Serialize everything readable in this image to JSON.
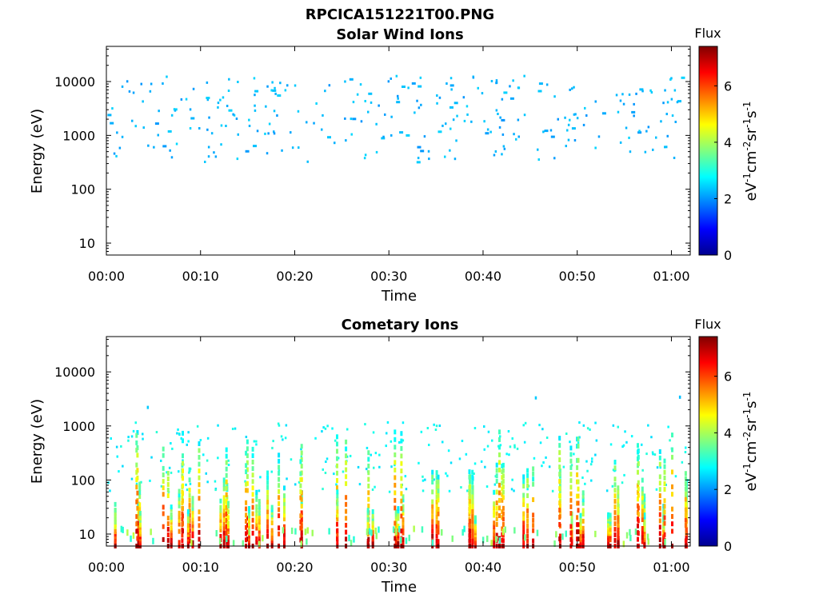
{
  "figure_title": "RPCICA151221T00.PNG",
  "colorbar": {
    "title": "Flux",
    "label": "eV-1cm-2sr-1s-1",
    "range": [
      0,
      7.4
    ],
    "ticks": [
      "0",
      "2",
      "4",
      "6"
    ],
    "colormap": "jet"
  },
  "chart_data": [
    {
      "type": "heatmap",
      "title": "Solar Wind Ions",
      "xlabel": "Time",
      "ylabel": "Energy (eV)",
      "xlim": [
        "00:00",
        "01:02"
      ],
      "ylim": [
        6,
        45000
      ],
      "yscale": "log",
      "x_ticks": [
        "00:00",
        "00:10",
        "00:20",
        "00:30",
        "00:40",
        "00:50",
        "01:00"
      ],
      "y_ticks": [
        "10",
        "100",
        "1000",
        "10000"
      ],
      "flux_range": [
        2.0,
        2.5
      ],
      "energy_band_eV": [
        300,
        13000
      ],
      "typical_flux": 2.3,
      "note_description": "sparse scattered points"
    },
    {
      "type": "heatmap",
      "title": "Cometary Ions",
      "xlabel": "Time",
      "ylabel": "Energy (eV)",
      "xlim": [
        "00:00",
        "01:02"
      ],
      "ylim": [
        6,
        45000
      ],
      "yscale": "log",
      "x_ticks": [
        "00:00",
        "00:10",
        "00:20",
        "00:30",
        "00:40",
        "00:50",
        "01:00"
      ],
      "y_ticks": [
        "10",
        "100",
        "1000",
        "10000"
      ],
      "flux_range": [
        2.5,
        7.2
      ],
      "energy_band_eV": [
        6,
        3500
      ],
      "bursts_minutes": [
        0.3,
        2.8,
        6.4,
        8.3,
        9.3,
        12.7,
        15.2,
        16.3,
        18.1,
        21.0,
        25.0,
        28.3,
        30.9,
        34.9,
        38.9,
        41.6,
        44.5,
        48.6,
        50.5,
        53.2,
        54.4,
        57.0,
        59.3,
        61.3
      ]
    }
  ]
}
